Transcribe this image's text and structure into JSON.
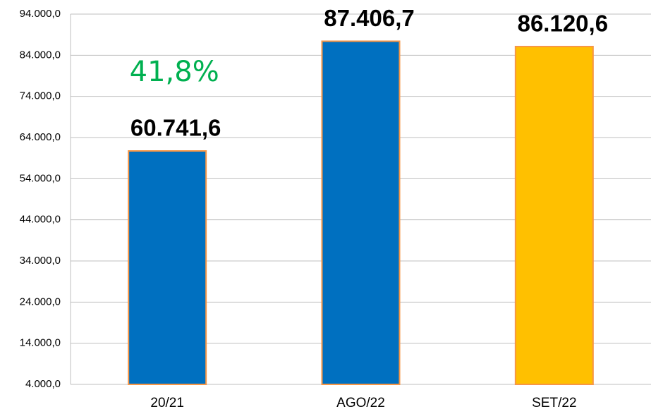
{
  "chart_data": {
    "type": "bar",
    "categories": [
      "20/21",
      "AGO/22",
      "SET/22"
    ],
    "values": [
      60741.6,
      87406.7,
      86120.6
    ],
    "value_labels": [
      "60.741,6",
      "87.406,7",
      "86.120,6"
    ],
    "colors": [
      "#0070c0",
      "#0070c0",
      "#ffc000"
    ],
    "edgecolor": "#f79646",
    "annotation": "41,8%",
    "annotation_color": "#00b050",
    "ylim": [
      4000,
      94000
    ],
    "yticks": [
      {
        "value": 4000,
        "label": "4.000,0"
      },
      {
        "value": 14000,
        "label": "14.000,0"
      },
      {
        "value": 24000,
        "label": "24.000,0"
      },
      {
        "value": 34000,
        "label": "34.000,0"
      },
      {
        "value": 44000,
        "label": "44.000,0"
      },
      {
        "value": 54000,
        "label": "54.000,0"
      },
      {
        "value": 64000,
        "label": "64.000,0"
      },
      {
        "value": 74000,
        "label": "74.000,0"
      },
      {
        "value": 84000,
        "label": "84.000,0"
      },
      {
        "value": 94000,
        "label": "94.000,0"
      }
    ],
    "grid": true
  }
}
